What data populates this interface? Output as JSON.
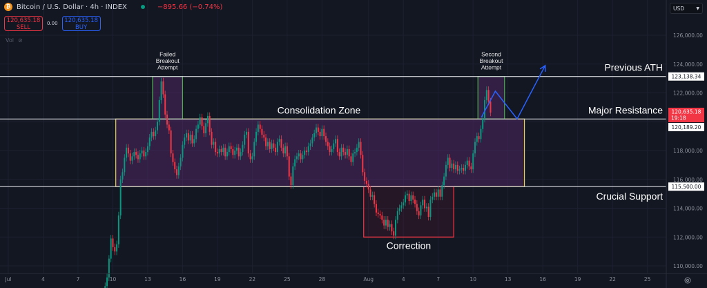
{
  "header": {
    "title": "Bitcoin / U.S. Dollar · 4h · INDEX",
    "change": "−895.66 (−0.74%)",
    "sell_price": "120,635.18",
    "sell_label": "SELL",
    "spread": "0.00",
    "buy_price": "120,635.18",
    "buy_label": "BUY",
    "vol_label": "Vol",
    "currency": "USD"
  },
  "colors": {
    "background": "#131722",
    "up": "#089981",
    "down": "#f23645",
    "zone_border": "#e8d44d",
    "zone_fill": "#5b2a6e",
    "breakout_border": "#4caf50",
    "correction_border": "#f23645",
    "arrow": "#2962ff",
    "level_line": "#d9dbe0"
  },
  "chart_data": {
    "type": "candlestick",
    "timeframe": "4h",
    "start": "2025-07-09T08:00",
    "closes": [
      108600,
      109200,
      110500,
      111900,
      111300,
      111000,
      111500,
      113500,
      116000,
      116500,
      117500,
      118200,
      117800,
      117300,
      117600,
      117900,
      117700,
      117400,
      117800,
      118000,
      117600,
      117900,
      118300,
      118900,
      119300,
      119000,
      119400,
      120000,
      121500,
      122800,
      121900,
      120500,
      119800,
      119400,
      117800,
      117200,
      116700,
      116300,
      116900,
      117500,
      118400,
      118900,
      119200,
      118700,
      119100,
      118500,
      118800,
      119500,
      119800,
      120300,
      119700,
      119200,
      119900,
      120400,
      119300,
      118400,
      118600,
      117900,
      117800,
      118100,
      117900,
      118200,
      117600,
      117900,
      118300,
      118100,
      117700,
      118000,
      118200,
      117600,
      117900,
      118400,
      119100,
      119300,
      117800,
      117400,
      117600,
      118600,
      119300,
      119800,
      119500,
      119100,
      118900,
      118300,
      118600,
      118100,
      118500,
      118200,
      117900,
      118600,
      118800,
      118200,
      117800,
      118300,
      117600,
      116200,
      115600,
      116900,
      117400,
      117600,
      117800,
      117400,
      117700,
      118000,
      117900,
      118300,
      118500,
      118900,
      119200,
      119600,
      119300,
      119000,
      119500,
      119000,
      118600,
      118300,
      117900,
      118100,
      118500,
      118800,
      117900,
      117600,
      118200,
      117900,
      117700,
      118100,
      117600,
      117200,
      117800,
      117900,
      118200,
      118600,
      117700,
      116500,
      115900,
      115700,
      115300,
      114800,
      114900,
      114300,
      113700,
      113600,
      113500,
      113200,
      112800,
      113200,
      112700,
      112900,
      112400,
      112100,
      113200,
      113800,
      114000,
      114200,
      114400,
      114900,
      115000,
      114500,
      114900,
      114600,
      114300,
      113800,
      113500,
      114200,
      114600,
      114000,
      114100,
      113400,
      114600,
      114800,
      115100,
      114800,
      115300,
      114800,
      115600,
      116200,
      117000,
      117500,
      116800,
      117100,
      116700,
      117000,
      116600,
      116700,
      116800,
      116600,
      117000,
      117300,
      116900,
      116700,
      117800,
      118600,
      119000,
      118800,
      119500,
      120200,
      121500,
      122200,
      121400,
      120635
    ],
    "yticks": [
      126000,
      124000,
      122000,
      118000,
      116000,
      114000,
      112000,
      110000
    ],
    "ytick_labels": [
      "126,000.00",
      "124,000.00",
      "122,000.00",
      "118,000.00",
      "116,000.00",
      "114,000.00",
      "112,000.00",
      "110,000.00"
    ],
    "ylim": [
      109500,
      127200
    ],
    "xticks": [
      {
        "date": "2025-07-01",
        "label": "Jul"
      },
      {
        "date": "2025-07-04",
        "label": "4"
      },
      {
        "date": "2025-07-07",
        "label": "7"
      },
      {
        "date": "2025-07-10",
        "label": "10"
      },
      {
        "date": "2025-07-13",
        "label": "13"
      },
      {
        "date": "2025-07-16",
        "label": "16"
      },
      {
        "date": "2025-07-19",
        "label": "19"
      },
      {
        "date": "2025-07-22",
        "label": "22"
      },
      {
        "date": "2025-07-25",
        "label": "25"
      },
      {
        "date": "2025-07-28",
        "label": "28"
      },
      {
        "date": "2025-08-01",
        "label": "Aug"
      },
      {
        "date": "2025-08-04",
        "label": "4"
      },
      {
        "date": "2025-08-07",
        "label": "7"
      },
      {
        "date": "2025-08-10",
        "label": "10"
      },
      {
        "date": "2025-08-13",
        "label": "13"
      },
      {
        "date": "2025-08-16",
        "label": "16"
      },
      {
        "date": "2025-08-19",
        "label": "19"
      },
      {
        "date": "2025-08-22",
        "label": "22"
      },
      {
        "date": "2025-08-25",
        "label": "25"
      }
    ],
    "levels": [
      {
        "price": 123138.34,
        "label": "Previous ATH",
        "axis_label": "123,138.34"
      },
      {
        "price": 120189.2,
        "label": "Major Resistance",
        "axis_label": "120,189.20"
      },
      {
        "price": 115500.0,
        "label": "Crucial Support",
        "axis_label": "115,500.00"
      }
    ],
    "last_price": {
      "price": 120635.18,
      "label": "120,635.18",
      "countdown": "19:18"
    },
    "zones": [
      {
        "kind": "consolidation",
        "label": "Consolidation Zone",
        "from": "2025-07-10T06:00",
        "to": "2025-08-14T10:00",
        "top": 120189.2,
        "bottom": 115500
      },
      {
        "kind": "breakout",
        "label_lines": [
          "Failed",
          "Breakout",
          "Attempt"
        ],
        "from": "2025-07-13T10:00",
        "to": "2025-07-16T00:00",
        "top": 123138.34,
        "bottom": 120189.2
      },
      {
        "kind": "breakout",
        "label_lines": [
          "Second",
          "Breakout",
          "Attempt"
        ],
        "from": "2025-08-10T10:00",
        "to": "2025-08-12T17:00",
        "top": 123138.34,
        "bottom": 120189.2
      },
      {
        "kind": "correction",
        "label": "Correction",
        "from": "2025-07-31T14:00",
        "to": "2025-08-08T08:00",
        "top": 115500,
        "bottom": 112000
      }
    ],
    "projection": [
      {
        "date": "2025-08-10T17:00",
        "price": 120300
      },
      {
        "date": "2025-08-11T22:00",
        "price": 122120
      },
      {
        "date": "2025-08-13T19:00",
        "price": 120200
      },
      {
        "date": "2025-08-16T05:00",
        "price": 123900
      }
    ]
  }
}
